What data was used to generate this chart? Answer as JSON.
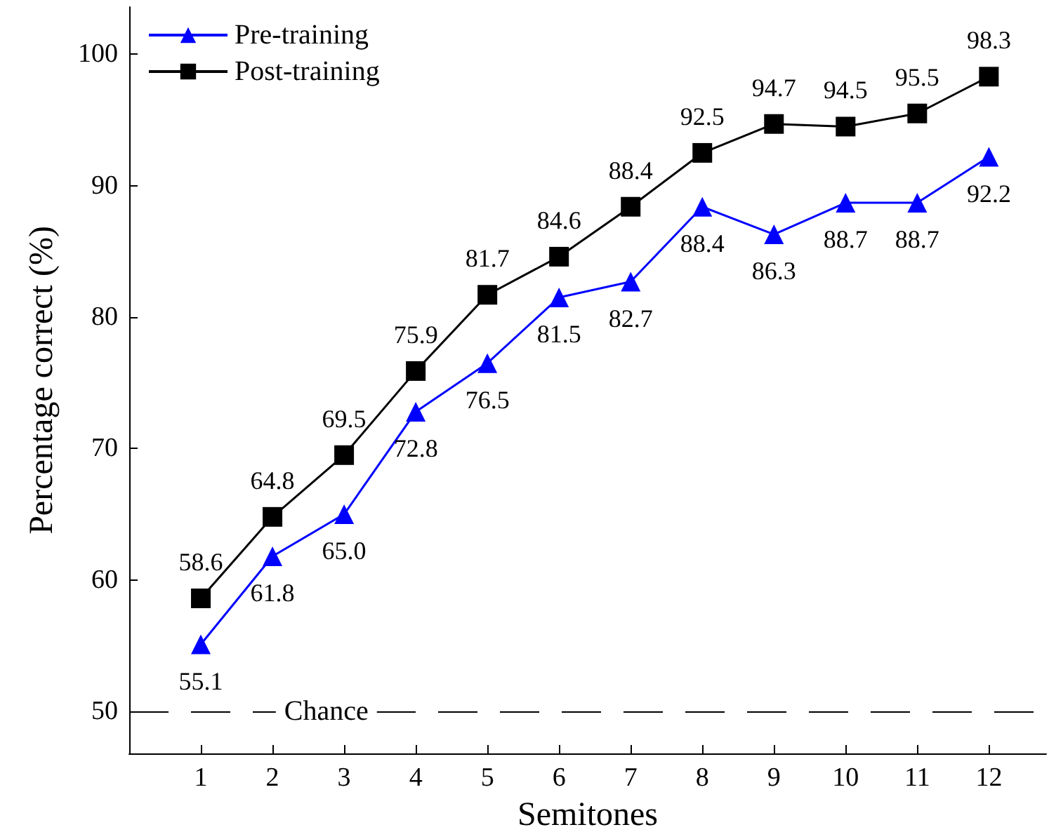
{
  "chart_data": {
    "type": "line",
    "xlabel": "Semitones",
    "ylabel": "Percentage correct (%)",
    "x": [
      1,
      2,
      3,
      4,
      5,
      6,
      7,
      8,
      9,
      10,
      11,
      12
    ],
    "series": [
      {
        "name": "Pre-training",
        "color": "#0000ff",
        "marker": "triangle",
        "values": [
          55.1,
          61.8,
          65.0,
          72.8,
          76.5,
          81.5,
          82.7,
          88.4,
          86.3,
          88.7,
          88.7,
          92.2
        ],
        "value_labels": [
          "55.1",
          "61.8",
          "65.0",
          "72.8",
          "76.5",
          "81.5",
          "82.7",
          "88.4",
          "86.3",
          "88.7",
          "88.7",
          "92.2"
        ]
      },
      {
        "name": "Post-training",
        "color": "#000000",
        "marker": "square",
        "values": [
          58.6,
          64.8,
          69.5,
          75.9,
          81.7,
          84.6,
          88.4,
          92.5,
          94.7,
          94.5,
          95.5,
          98.3
        ],
        "value_labels": [
          "58.6",
          "64.8",
          "69.5",
          "75.9",
          "81.7",
          "84.6",
          "88.4",
          "92.5",
          "94.7",
          "94.5",
          "95.5",
          "98.3"
        ]
      }
    ],
    "xlim": [
      0,
      12.8
    ],
    "xticks": [
      1,
      2,
      3,
      4,
      5,
      6,
      7,
      8,
      9,
      10,
      11,
      12
    ],
    "ylim": [
      46.8,
      103.6
    ],
    "yticks": [
      50,
      60,
      70,
      80,
      90,
      100
    ],
    "ref_lines": [
      {
        "axis": "y",
        "value": 50,
        "label": "Chance",
        "color": "#000000",
        "line_style": "dashed"
      }
    ],
    "legend": "top left",
    "grid": false,
    "line_style": "solid"
  }
}
